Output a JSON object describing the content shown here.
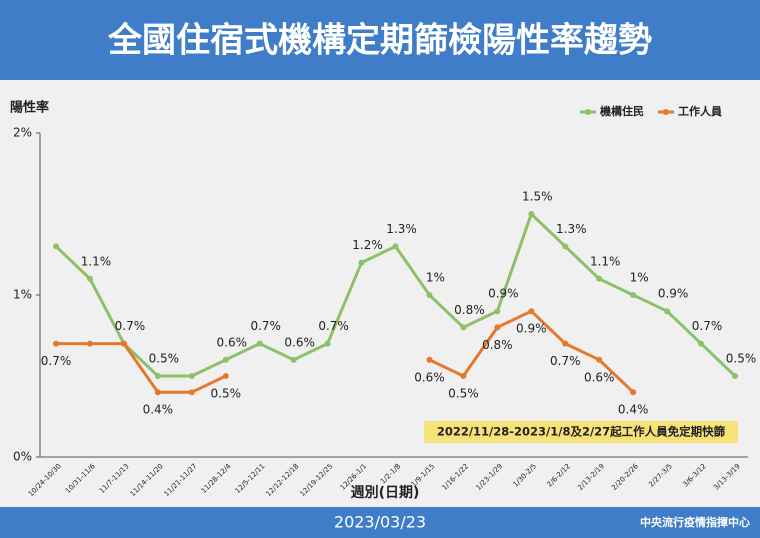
{
  "header": {
    "title": "全國住宿式機構定期篩檢陽性率趨勢"
  },
  "footer": {
    "date": "2023/03/23",
    "source": "中央流行疫情指揮中心"
  },
  "chart_data": {
    "type": "line",
    "y_label": "陽性率",
    "x_label": "週別(日期)",
    "annotation": "2022/11/28-2023/1/8及2/27起工作人員免定期快篩",
    "legend": "top-right",
    "categories": [
      "10/24-10/30",
      "10/31-11/6",
      "11/7-11/13",
      "11/14-11/20",
      "11/21-11/27",
      "11/28-12/4",
      "12/5-12/11",
      "12/12-12/18",
      "12/19-12/25",
      "12/26-1/1",
      "1/2-1/8",
      "1/9-1/15",
      "1/16-1/22",
      "1/23-1/29",
      "1/30-2/5",
      "2/6-2/12",
      "2/13-2/19",
      "2/20-2/26",
      "2/27-3/5",
      "3/6-3/12",
      "3/13-3/19"
    ],
    "ylim": [
      0,
      2
    ],
    "yticks": [
      {
        "value": 0,
        "label": "0%"
      },
      {
        "value": 1,
        "label": "1%"
      },
      {
        "value": 2,
        "label": "2%"
      }
    ],
    "series": [
      {
        "name": "機構住民",
        "color": "#8cc167",
        "values": [
          1.3,
          1.1,
          0.7,
          0.5,
          0.5,
          0.6,
          0.7,
          0.6,
          0.7,
          1.2,
          1.3,
          1,
          0.8,
          0.9,
          1.5,
          1.3,
          1.1,
          1,
          0.9,
          0.7,
          0.5
        ],
        "value_labels": [
          null,
          "1.1%",
          "0.7%",
          "0.5%",
          null,
          "0.6%",
          "0.7%",
          "0.6%",
          "0.7%",
          "1.2%",
          "1.3%",
          "1%",
          "0.8%",
          "0.9%",
          "1.5%",
          "1.3%",
          "1.1%",
          "1%",
          "0.9%",
          "0.7%",
          "0.5%"
        ]
      },
      {
        "name": "工作人員",
        "color": "#e8772e",
        "values": [
          0.7,
          0.7,
          0.7,
          0.4,
          0.4,
          0.5,
          null,
          null,
          null,
          null,
          null,
          0.6,
          0.5,
          0.8,
          0.9,
          0.7,
          0.6,
          0.4,
          null,
          null,
          null
        ],
        "value_labels": [
          "0.7%",
          null,
          null,
          "0.4%",
          null,
          "0.5%",
          null,
          null,
          null,
          null,
          null,
          "0.6%",
          "0.5%",
          "0.8%",
          "0.9%",
          "0.7%",
          "0.6%",
          "0.4%",
          null,
          null,
          null
        ]
      }
    ]
  }
}
